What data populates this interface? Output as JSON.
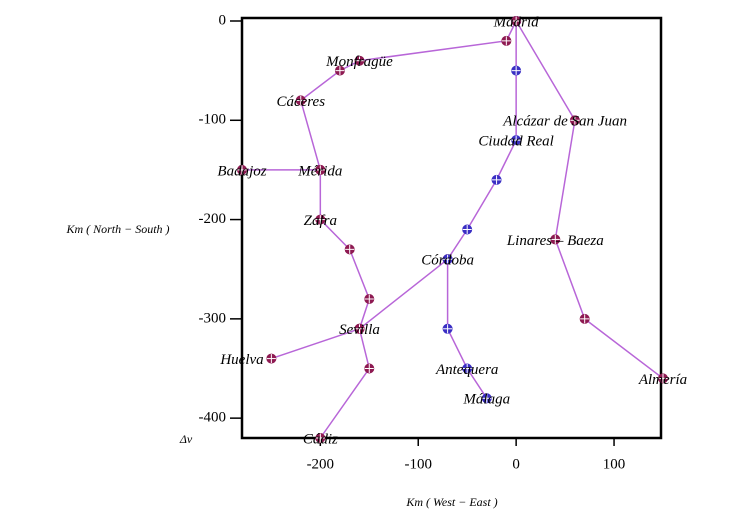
{
  "chart_data": {
    "type": "network",
    "xlabel": "Km ( West − East )",
    "ylabel": "Km ( North − South )",
    "corner_label": "Δv",
    "xlim": [
      -280,
      150
    ],
    "ylim": [
      -420,
      0
    ],
    "xticks": [
      -200,
      -100,
      0,
      100
    ],
    "yticks": [
      0,
      -100,
      -200,
      -300,
      -400
    ],
    "line_color": "#b866d8",
    "series": [
      {
        "color": "#8e1a52",
        "x": [
          0,
          -10,
          -160,
          -180,
          -220,
          -200,
          -200,
          -170,
          -150,
          -160,
          -250
        ],
        "values": [
          0,
          -20,
          -40,
          -50,
          -80,
          -150,
          -200,
          -230,
          -280,
          -310,
          -340
        ]
      },
      {
        "color": "#8e1a52",
        "x": [
          -280,
          -200
        ],
        "values": [
          -150,
          -150
        ]
      },
      {
        "color": "#8e1a52",
        "x": [
          -160,
          -150,
          -200
        ],
        "values": [
          -310,
          -350,
          -420
        ]
      },
      {
        "color": "#8e1a52",
        "x": [
          -160,
          -70
        ],
        "values": [
          -310,
          -240
        ]
      },
      {
        "color": "#3b2fc4",
        "x": [
          0,
          0,
          0,
          -20,
          -50,
          -70,
          -70,
          -50,
          -30
        ],
        "values": [
          0,
          -50,
          -120,
          -160,
          -210,
          -240,
          -310,
          -350,
          -380
        ]
      },
      {
        "color": "#8e1a52",
        "x": [
          0,
          60,
          40,
          70,
          150
        ],
        "values": [
          0,
          -100,
          -220,
          -300,
          -360
        ]
      }
    ],
    "annotations": [
      {
        "text": "Madrid",
        "x": 0,
        "y": 0
      },
      {
        "text": "Monfragüe",
        "x": -160,
        "y": -40
      },
      {
        "text": "Cáceres",
        "x": -220,
        "y": -80
      },
      {
        "text": "Badajoz",
        "x": -280,
        "y": -150
      },
      {
        "text": "Mérida",
        "x": -200,
        "y": -150
      },
      {
        "text": "Zafra",
        "x": -200,
        "y": -200
      },
      {
        "text": "Sevilla",
        "x": -160,
        "y": -310
      },
      {
        "text": "Huelva",
        "x": -280,
        "y": -340
      },
      {
        "text": "Cádiz",
        "x": -200,
        "y": -420
      },
      {
        "text": "Córdoba",
        "x": -70,
        "y": -240
      },
      {
        "text": "Antequera",
        "x": -50,
        "y": -350
      },
      {
        "text": "Málaga",
        "x": -30,
        "y": -380
      },
      {
        "text": "Alcázar de San Juan",
        "x": 50,
        "y": -100
      },
      {
        "text": "Ciudad Real",
        "x": 0,
        "y": -120
      },
      {
        "text": "Linares – Baeza",
        "x": 40,
        "y": -220
      },
      {
        "text": "Almería",
        "x": 150,
        "y": -360
      }
    ]
  }
}
